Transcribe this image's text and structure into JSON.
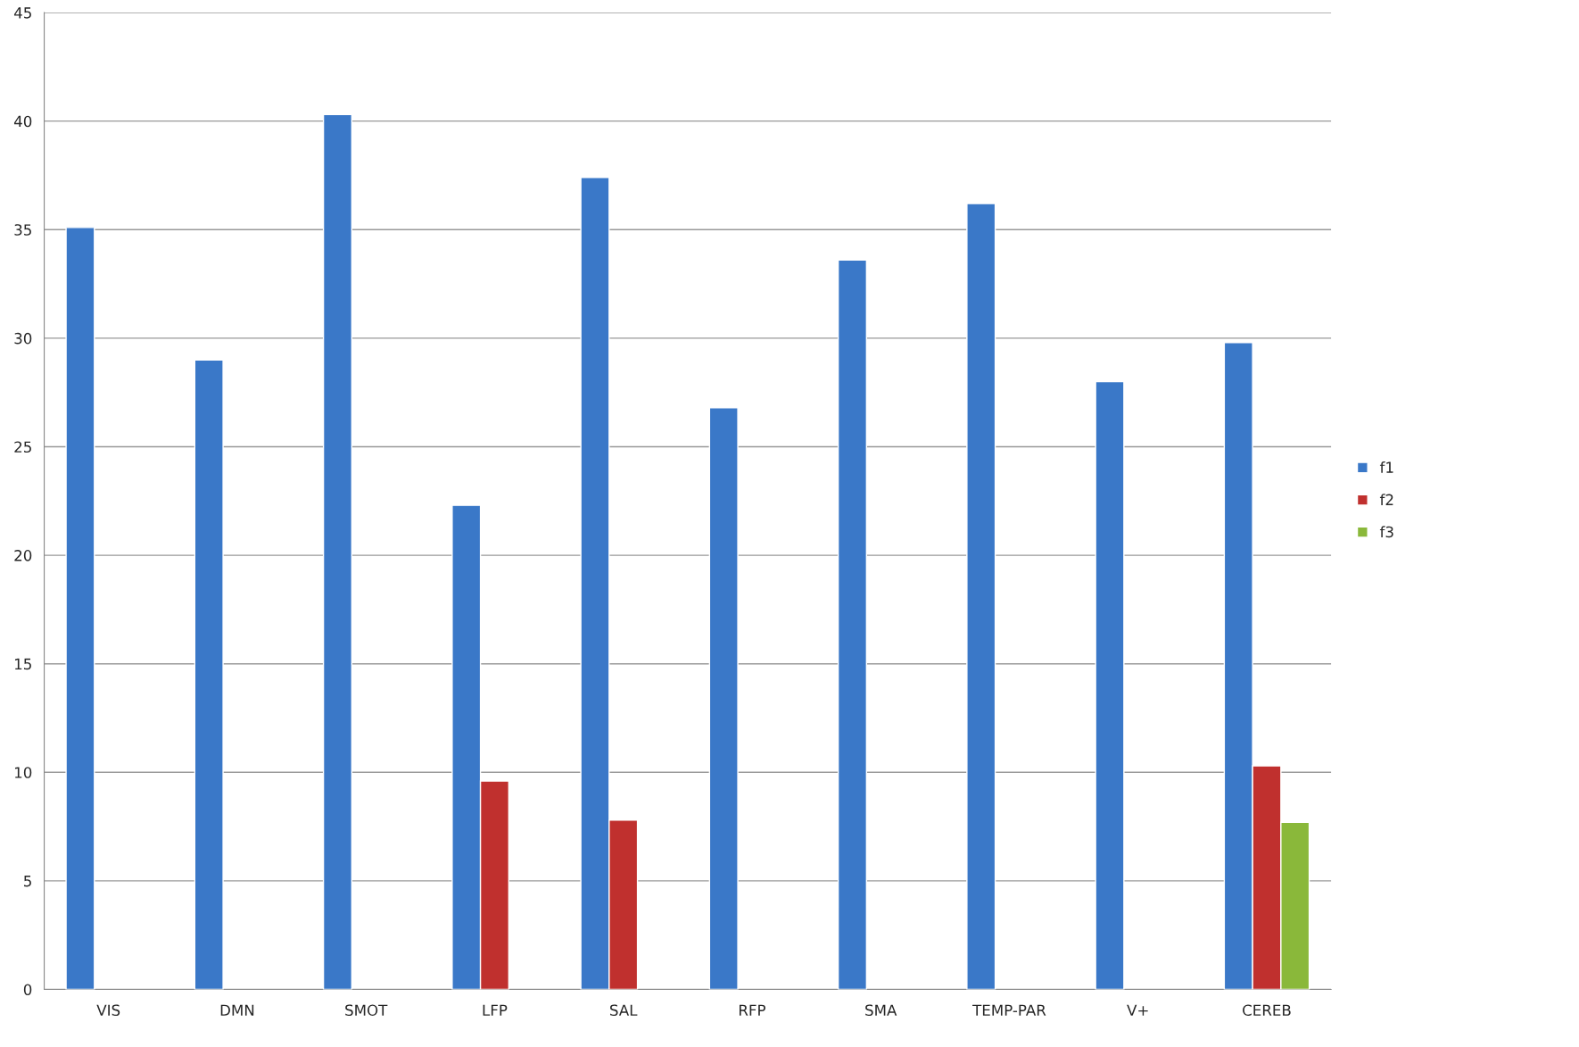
{
  "chart_data": {
    "type": "bar",
    "categories": [
      "VIS",
      "DMN",
      "SMOT",
      "LFP",
      "SAL",
      "RFP",
      "SMA",
      "TEMP-PAR",
      "V+",
      "CEREB"
    ],
    "series": [
      {
        "name": "f1",
        "color": "#3a78c8",
        "values": [
          35.1,
          29.0,
          40.3,
          22.3,
          37.4,
          26.8,
          33.6,
          36.2,
          28.0,
          29.8
        ]
      },
      {
        "name": "f2",
        "color": "#c0302e",
        "values": [
          null,
          null,
          null,
          9.6,
          7.8,
          null,
          null,
          null,
          null,
          10.3
        ]
      },
      {
        "name": "f3",
        "color": "#8ab83a",
        "values": [
          null,
          null,
          null,
          null,
          null,
          null,
          null,
          null,
          null,
          7.7
        ]
      }
    ],
    "ylim": [
      0,
      45
    ],
    "yticks": [
      0,
      5,
      10,
      15,
      20,
      25,
      30,
      35,
      40,
      45
    ],
    "grid": "y",
    "legend": "right"
  }
}
